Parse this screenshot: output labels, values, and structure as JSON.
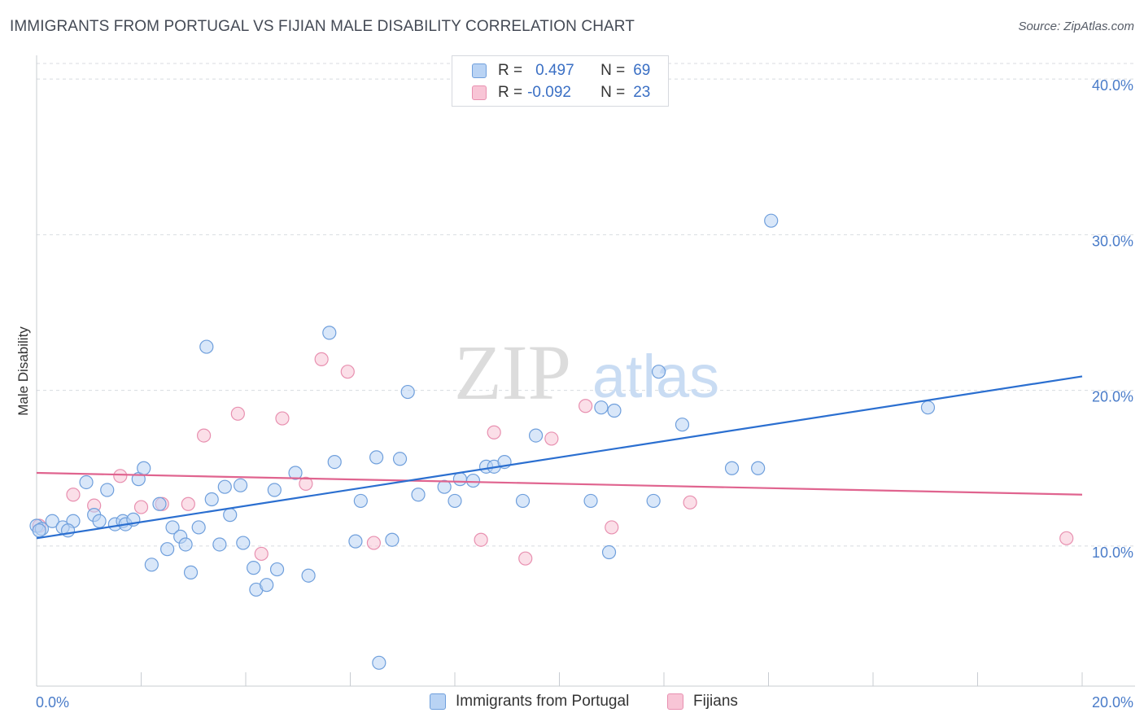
{
  "title": "IMMIGRANTS FROM PORTUGAL VS FIJIAN MALE DISABILITY CORRELATION CHART",
  "source": "Source: ZipAtlas.com",
  "watermark": {
    "zip": "ZIP",
    "atlas": "atlas"
  },
  "legend": {
    "rows": [
      {
        "r_label": "R =",
        "r_value": "0.497",
        "n_label": "N =",
        "n_value": "69"
      },
      {
        "r_label": "R =",
        "r_value": "-0.092",
        "n_label": "N =",
        "n_value": "23"
      }
    ]
  },
  "colors": {
    "blue_fill": "#b9d3f4",
    "blue_stroke": "#6f9fdc",
    "blue_line": "#2b6fd0",
    "pink_fill": "#f8c5d6",
    "pink_stroke": "#e890b0",
    "pink_line": "#e0648f",
    "tick": "#4a7cc9",
    "grid": "#d8dbe0"
  },
  "chart_data": {
    "type": "scatter",
    "title": "IMMIGRANTS FROM PORTUGAL VS FIJIAN MALE DISABILITY CORRELATION CHART",
    "ylabel": "Male Disability",
    "xlabel": "",
    "xlim": [
      0,
      20
    ],
    "ylim": [
      1,
      41
    ],
    "x_tick_labels": [
      "0.0%",
      "20.0%"
    ],
    "y_ticks": [
      10,
      20,
      30,
      40
    ],
    "y_tick_labels": [
      "10.0%",
      "20.0%",
      "30.0%",
      "40.0%"
    ],
    "legend_position": "bottom",
    "series": [
      {
        "name": "Immigrants from Portugal",
        "r": 0.497,
        "n": 69,
        "trend": [
          [
            0,
            10.5
          ],
          [
            20,
            20.9
          ]
        ],
        "points": [
          [
            0.0,
            11.3
          ],
          [
            0.1,
            11.1
          ],
          [
            0.3,
            11.6
          ],
          [
            0.5,
            11.2
          ],
          [
            0.7,
            11.6
          ],
          [
            0.95,
            14.1
          ],
          [
            1.1,
            12.0
          ],
          [
            1.2,
            11.6
          ],
          [
            1.35,
            13.6
          ],
          [
            1.5,
            11.4
          ],
          [
            1.65,
            11.6
          ],
          [
            1.7,
            11.4
          ],
          [
            1.85,
            11.7
          ],
          [
            1.95,
            14.3
          ],
          [
            2.05,
            15.0
          ],
          [
            2.2,
            8.8
          ],
          [
            2.35,
            12.7
          ],
          [
            2.5,
            9.8
          ],
          [
            2.6,
            11.2
          ],
          [
            2.75,
            10.6
          ],
          [
            2.85,
            10.1
          ],
          [
            2.95,
            8.3
          ],
          [
            3.1,
            11.2
          ],
          [
            3.25,
            22.8
          ],
          [
            3.35,
            13.0
          ],
          [
            3.5,
            10.1
          ],
          [
            3.6,
            13.8
          ],
          [
            3.7,
            12.0
          ],
          [
            3.9,
            13.9
          ],
          [
            3.95,
            10.2
          ],
          [
            4.15,
            8.6
          ],
          [
            4.2,
            7.2
          ],
          [
            4.4,
            7.5
          ],
          [
            4.55,
            13.6
          ],
          [
            4.6,
            8.5
          ],
          [
            4.95,
            14.7
          ],
          [
            5.2,
            8.1
          ],
          [
            5.6,
            23.7
          ],
          [
            5.7,
            15.4
          ],
          [
            6.1,
            10.3
          ],
          [
            6.2,
            12.9
          ],
          [
            6.5,
            15.7
          ],
          [
            6.55,
            2.5
          ],
          [
            6.8,
            10.4
          ],
          [
            6.95,
            15.6
          ],
          [
            7.1,
            19.9
          ],
          [
            7.3,
            13.3
          ],
          [
            7.8,
            13.8
          ],
          [
            8.0,
            12.9
          ],
          [
            8.1,
            14.3
          ],
          [
            8.35,
            14.2
          ],
          [
            8.6,
            15.1
          ],
          [
            8.75,
            15.1
          ],
          [
            8.95,
            15.4
          ],
          [
            9.3,
            12.9
          ],
          [
            9.55,
            17.1
          ],
          [
            10.6,
            12.9
          ],
          [
            10.8,
            18.9
          ],
          [
            10.95,
            9.6
          ],
          [
            11.05,
            18.7
          ],
          [
            11.8,
            12.9
          ],
          [
            11.9,
            21.2
          ],
          [
            12.35,
            17.8
          ],
          [
            13.3,
            15.0
          ],
          [
            13.8,
            15.0
          ],
          [
            14.05,
            30.9
          ],
          [
            17.05,
            18.9
          ],
          [
            0.05,
            11.0
          ],
          [
            0.6,
            11.0
          ]
        ]
      },
      {
        "name": "Fijians",
        "r": -0.092,
        "n": 23,
        "trend": [
          [
            0,
            14.7
          ],
          [
            20,
            13.3
          ]
        ],
        "points": [
          [
            0.05,
            11.3
          ],
          [
            0.7,
            13.3
          ],
          [
            1.1,
            12.6
          ],
          [
            1.6,
            14.5
          ],
          [
            2.0,
            12.5
          ],
          [
            2.4,
            12.7
          ],
          [
            2.9,
            12.7
          ],
          [
            3.2,
            17.1
          ],
          [
            3.85,
            18.5
          ],
          [
            4.3,
            9.5
          ],
          [
            4.7,
            18.2
          ],
          [
            5.15,
            14.0
          ],
          [
            5.45,
            22.0
          ],
          [
            5.95,
            21.2
          ],
          [
            6.45,
            10.2
          ],
          [
            8.5,
            10.4
          ],
          [
            8.75,
            17.3
          ],
          [
            9.35,
            9.2
          ],
          [
            9.85,
            16.9
          ],
          [
            10.5,
            19.0
          ],
          [
            11.0,
            11.2
          ],
          [
            12.5,
            12.8
          ],
          [
            19.7,
            10.5
          ]
        ]
      }
    ]
  }
}
